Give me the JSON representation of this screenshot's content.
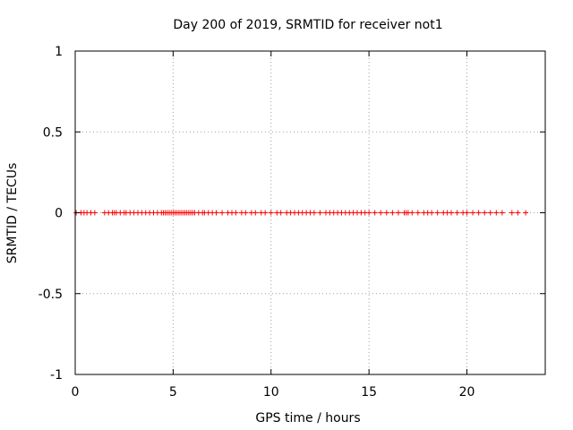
{
  "chart_data": {
    "type": "scatter",
    "title": "Day 200 of 2019, SRMTID for receiver not1",
    "xlabel": "GPS time / hours",
    "ylabel": "SRMTID / TECUs",
    "xlim": [
      0,
      24
    ],
    "ylim": [
      -1,
      1
    ],
    "x_ticks": [
      0,
      5,
      10,
      15,
      20
    ],
    "y_ticks": [
      -1,
      -0.5,
      0,
      0.5,
      1
    ],
    "x_tick_labels": [
      "0",
      "5",
      "10",
      "15",
      "20"
    ],
    "y_tick_labels": [
      "-1",
      "-0.5",
      "0",
      "0.5",
      "1"
    ],
    "grid": true,
    "marker": "+",
    "series": [
      {
        "name": "SRMTID",
        "color": "#ff0000",
        "x": [
          0.05,
          0.3,
          0.45,
          0.6,
          0.8,
          1.0,
          1.5,
          1.7,
          1.9,
          2.0,
          2.1,
          2.3,
          2.5,
          2.6,
          2.8,
          3.0,
          3.2,
          3.4,
          3.6,
          3.8,
          4.0,
          4.2,
          4.4,
          4.5,
          4.6,
          4.7,
          4.8,
          4.9,
          5.0,
          5.1,
          5.2,
          5.3,
          5.4,
          5.5,
          5.6,
          5.7,
          5.8,
          5.9,
          6.0,
          6.1,
          6.3,
          6.5,
          6.6,
          6.8,
          7.0,
          7.2,
          7.5,
          7.8,
          8.0,
          8.2,
          8.5,
          8.7,
          9.0,
          9.2,
          9.5,
          9.7,
          10.0,
          10.3,
          10.5,
          10.8,
          11.0,
          11.2,
          11.4,
          11.6,
          11.8,
          12.0,
          12.2,
          12.5,
          12.8,
          13.0,
          13.2,
          13.4,
          13.6,
          13.8,
          14.0,
          14.2,
          14.4,
          14.6,
          14.8,
          15.0,
          15.3,
          15.6,
          15.9,
          16.2,
          16.5,
          16.8,
          16.9,
          17.0,
          17.2,
          17.5,
          17.8,
          18.0,
          18.2,
          18.5,
          18.8,
          19.0,
          19.2,
          19.5,
          19.8,
          20.0,
          20.3,
          20.6,
          20.9,
          21.2,
          21.5,
          21.8,
          22.3,
          22.6,
          23.0
        ],
        "y": [
          0,
          0,
          0,
          0,
          0,
          0,
          0,
          0,
          0,
          0,
          0,
          0,
          0,
          0,
          0,
          0,
          0,
          0,
          0,
          0,
          0,
          0,
          0,
          0,
          0,
          0,
          0,
          0,
          0,
          0,
          0,
          0,
          0,
          0,
          0,
          0,
          0,
          0,
          0,
          0,
          0,
          0,
          0,
          0,
          0,
          0,
          0,
          0,
          0,
          0,
          0,
          0,
          0,
          0,
          0,
          0,
          0,
          0,
          0,
          0,
          0,
          0,
          0,
          0,
          0,
          0,
          0,
          0,
          0,
          0,
          0,
          0,
          0,
          0,
          0,
          0,
          0,
          0,
          0,
          0,
          0,
          0,
          0,
          0,
          0,
          0,
          0,
          0,
          0,
          0,
          0,
          0,
          0,
          0,
          0,
          0,
          0,
          0,
          0,
          0,
          0,
          0,
          0,
          0,
          0,
          0,
          0,
          0,
          0
        ]
      }
    ]
  }
}
